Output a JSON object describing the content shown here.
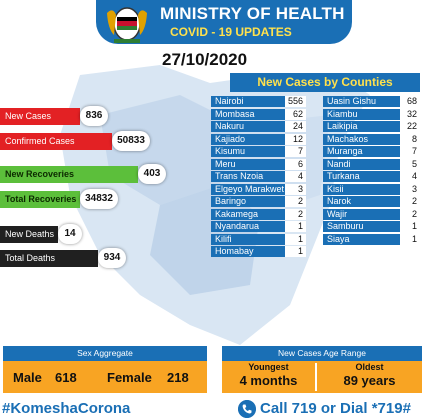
{
  "header": {
    "title": "MINISTRY OF HEALTH",
    "subtitle": "COVID - 19 UPDATES",
    "date": "27/10/2020"
  },
  "stats": [
    {
      "label": "New Cases",
      "value": "836"
    },
    {
      "label": "Confirmed Cases",
      "value": "50833"
    },
    {
      "label": "New Recoveries",
      "value": "403"
    },
    {
      "label": "Total Recoveries",
      "value": "34832"
    },
    {
      "label": "New Deaths",
      "value": "14"
    },
    {
      "label": "Total Deaths",
      "value": "934"
    }
  ],
  "counties": {
    "title": "New Cases by Counties",
    "left": [
      {
        "name": "Nairobi",
        "value": "556"
      },
      {
        "name": "Mombasa",
        "value": "62"
      },
      {
        "name": "Nakuru",
        "value": "24"
      },
      {
        "name": "Kajiado",
        "value": "12"
      },
      {
        "name": "Kisumu",
        "value": "7"
      },
      {
        "name": "Meru",
        "value": "6"
      },
      {
        "name": "Trans Nzoia",
        "value": "4"
      },
      {
        "name": "Elgeyo Marakwet",
        "value": "3"
      },
      {
        "name": "Baringo",
        "value": "2"
      },
      {
        "name": "Kakamega",
        "value": "2"
      },
      {
        "name": "Nyandarua",
        "value": "1"
      },
      {
        "name": "Kilifi",
        "value": "1"
      },
      {
        "name": "Homabay",
        "value": "1"
      }
    ],
    "right": [
      {
        "name": "Uasin Gishu",
        "value": "68"
      },
      {
        "name": "Kiambu",
        "value": "32"
      },
      {
        "name": "Laikipia",
        "value": "22"
      },
      {
        "name": "Machakos",
        "value": "8"
      },
      {
        "name": "Muranga",
        "value": "7"
      },
      {
        "name": "Nandi",
        "value": "5"
      },
      {
        "name": "Turkana",
        "value": "4"
      },
      {
        "name": "Kisii",
        "value": "3"
      },
      {
        "name": "Narok",
        "value": "2"
      },
      {
        "name": "Wajir",
        "value": "2"
      },
      {
        "name": "Samburu",
        "value": "1"
      },
      {
        "name": "Siaya",
        "value": "1"
      }
    ]
  },
  "sex_aggregate": {
    "title": "Sex Aggregate",
    "male_label": "Male",
    "male_value": "618",
    "female_label": "Female",
    "female_value": "218"
  },
  "age_range": {
    "title": "New Cases Age Range",
    "youngest_label": "Youngest",
    "youngest_value": "4 months",
    "oldest_label": "Oldest",
    "oldest_value": "89 years"
  },
  "footer": {
    "hashtag": "#KomeshaCorona",
    "call": "Call  719 or Dial *719#"
  },
  "colors": {
    "brand_blue": "#1a6fb5",
    "yellow": "#ffe14d",
    "red": "#e32124",
    "green": "#5cbf3b",
    "orange": "#f8a423"
  },
  "icons": [
    "kenya-coat-of-arms-icon",
    "phone-icon",
    "kenya-map-icon"
  ]
}
